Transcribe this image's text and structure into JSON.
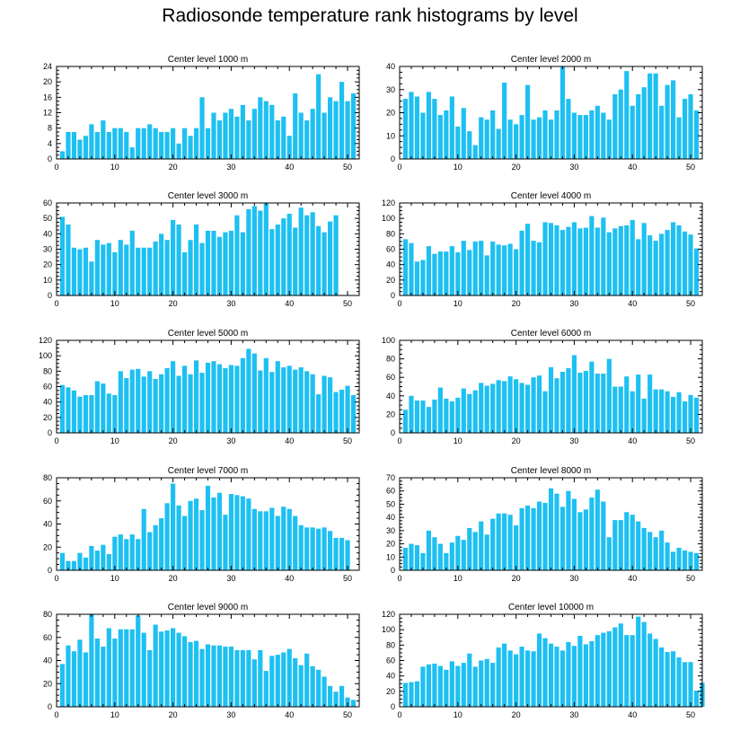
{
  "title": "Radiosonde temperature rank histograms by level",
  "colors": {
    "bar": "#1ec0f2",
    "axis": "#000000",
    "background": "#ffffff"
  },
  "chart_data": [
    {
      "type": "bar",
      "title": "Center level 1000 m",
      "xlim": [
        0,
        52
      ],
      "ylim": [
        0,
        24
      ],
      "xticks": [
        0,
        10,
        20,
        30,
        40,
        50
      ],
      "yticks": [
        0,
        4,
        8,
        12,
        16,
        20,
        24
      ],
      "values": [
        2,
        7,
        7,
        5,
        6,
        9,
        7,
        10,
        7,
        8,
        8,
        7,
        3,
        8,
        8,
        9,
        8,
        7,
        7,
        8,
        4,
        8,
        6,
        8,
        16,
        8,
        12,
        10,
        12,
        13,
        11,
        14,
        10,
        13,
        16,
        15,
        14,
        10,
        11,
        6,
        17,
        12,
        10,
        13,
        22,
        12,
        16,
        15,
        20,
        15,
        17
      ]
    },
    {
      "type": "bar",
      "title": "Center level 2000 m",
      "xlim": [
        0,
        52
      ],
      "ylim": [
        0,
        40
      ],
      "xticks": [
        0,
        10,
        20,
        30,
        40,
        50
      ],
      "yticks": [
        0,
        10,
        20,
        30,
        40
      ],
      "values": [
        26,
        29,
        27,
        20,
        29,
        26,
        19,
        21,
        27,
        14,
        22,
        12,
        6,
        18,
        17,
        21,
        13,
        33,
        17,
        15,
        19,
        32,
        17,
        18,
        21,
        17,
        21,
        40,
        26,
        20,
        19,
        19,
        21,
        23,
        20,
        17,
        28,
        30,
        38,
        23,
        28,
        31,
        37,
        37,
        23,
        32,
        34,
        18,
        26,
        28,
        21
      ]
    },
    {
      "type": "bar",
      "title": "Center level 3000 m",
      "xlim": [
        0,
        52
      ],
      "ylim": [
        0,
        60
      ],
      "xticks": [
        0,
        10,
        20,
        30,
        40,
        50
      ],
      "yticks": [
        0,
        10,
        20,
        30,
        40,
        50,
        60
      ],
      "values": [
        51,
        46,
        31,
        30,
        31,
        22,
        36,
        33,
        34,
        28,
        36,
        33,
        42,
        31,
        31,
        31,
        35,
        40,
        36,
        49,
        46,
        28,
        36,
        46,
        34,
        42,
        42,
        38,
        41,
        42,
        52,
        41,
        56,
        58,
        55,
        60,
        43,
        46,
        50,
        53,
        44,
        57,
        52,
        54,
        45,
        41,
        48,
        52
      ]
    },
    {
      "type": "bar",
      "title": "Center level 4000 m",
      "xlim": [
        0,
        52
      ],
      "ylim": [
        0,
        120
      ],
      "xticks": [
        0,
        10,
        20,
        30,
        40,
        50
      ],
      "yticks": [
        0,
        20,
        40,
        60,
        80,
        100,
        120
      ],
      "values": [
        73,
        68,
        44,
        46,
        64,
        54,
        57,
        57,
        64,
        56,
        71,
        59,
        70,
        71,
        52,
        70,
        66,
        65,
        67,
        60,
        84,
        93,
        71,
        69,
        95,
        94,
        91,
        85,
        89,
        95,
        87,
        88,
        103,
        88,
        101,
        82,
        87,
        90,
        91,
        98,
        73,
        94,
        78,
        71,
        80,
        85,
        95,
        91,
        83,
        79,
        61
      ]
    },
    {
      "type": "bar",
      "title": "Center level 5000 m",
      "xlim": [
        0,
        52
      ],
      "ylim": [
        0,
        120
      ],
      "xticks": [
        0,
        10,
        20,
        30,
        40,
        50
      ],
      "yticks": [
        0,
        20,
        40,
        60,
        80,
        100,
        120
      ],
      "values": [
        62,
        59,
        55,
        47,
        49,
        49,
        67,
        64,
        51,
        49,
        80,
        71,
        82,
        83,
        73,
        80,
        70,
        76,
        84,
        93,
        74,
        87,
        76,
        94,
        78,
        91,
        93,
        89,
        84,
        88,
        87,
        97,
        109,
        103,
        81,
        97,
        79,
        93,
        85,
        87,
        82,
        85,
        80,
        76,
        50,
        74,
        72,
        53,
        56,
        61,
        49
      ]
    },
    {
      "type": "bar",
      "title": "Center level 6000 m",
      "xlim": [
        0,
        52
      ],
      "ylim": [
        0,
        100
      ],
      "xticks": [
        0,
        10,
        20,
        30,
        40,
        50
      ],
      "yticks": [
        0,
        20,
        40,
        60,
        80,
        100
      ],
      "values": [
        25,
        40,
        35,
        35,
        28,
        36,
        49,
        37,
        34,
        38,
        48,
        42,
        46,
        54,
        51,
        53,
        57,
        56,
        61,
        58,
        54,
        52,
        60,
        62,
        45,
        71,
        59,
        66,
        70,
        84,
        65,
        67,
        77,
        64,
        64,
        80,
        50,
        50,
        61,
        45,
        63,
        37,
        63,
        47,
        47,
        45,
        39,
        44,
        34,
        41,
        38
      ]
    },
    {
      "type": "bar",
      "title": "Center level 7000 m",
      "xlim": [
        0,
        52
      ],
      "ylim": [
        0,
        80
      ],
      "xticks": [
        0,
        10,
        20,
        30,
        40,
        50
      ],
      "yticks": [
        0,
        20,
        40,
        60,
        80
      ],
      "values": [
        15,
        8,
        8,
        15,
        11,
        21,
        17,
        22,
        14,
        29,
        31,
        27,
        31,
        27,
        53,
        33,
        39,
        45,
        58,
        75,
        56,
        47,
        60,
        62,
        52,
        73,
        63,
        67,
        48,
        66,
        65,
        64,
        62,
        53,
        51,
        51,
        54,
        47,
        55,
        53,
        47,
        39,
        37,
        37,
        36,
        37,
        34,
        28,
        28,
        26
      ]
    },
    {
      "type": "bar",
      "title": "Center level 8000 m",
      "xlim": [
        0,
        52
      ],
      "ylim": [
        0,
        70
      ],
      "xticks": [
        0,
        10,
        20,
        30,
        40,
        50
      ],
      "yticks": [
        0,
        10,
        20,
        30,
        40,
        50,
        60,
        70
      ],
      "values": [
        17,
        20,
        19,
        13,
        30,
        25,
        20,
        13,
        21,
        26,
        23,
        32,
        29,
        37,
        27,
        39,
        43,
        43,
        42,
        34,
        47,
        49,
        47,
        52,
        51,
        62,
        58,
        48,
        60,
        54,
        44,
        46,
        55,
        61,
        52,
        25,
        38,
        38,
        44,
        42,
        37,
        32,
        29,
        25,
        30,
        21,
        14,
        17,
        15,
        14,
        13
      ]
    },
    {
      "type": "bar",
      "title": "Center level 9000 m",
      "xlim": [
        0,
        52
      ],
      "ylim": [
        0,
        80
      ],
      "xticks": [
        0,
        10,
        20,
        30,
        40,
        50
      ],
      "yticks": [
        0,
        20,
        40,
        60,
        80
      ],
      "values": [
        37,
        53,
        48,
        58,
        47,
        80,
        59,
        52,
        68,
        59,
        67,
        67,
        67,
        79,
        64,
        49,
        71,
        65,
        66,
        68,
        64,
        61,
        56,
        57,
        50,
        54,
        53,
        53,
        52,
        52,
        49,
        49,
        49,
        41,
        49,
        31,
        44,
        45,
        47,
        50,
        42,
        36,
        46,
        35,
        32,
        26,
        18,
        13,
        18,
        8,
        6
      ]
    },
    {
      "type": "bar",
      "title": "Center level 10000 m",
      "xlim": [
        0,
        52
      ],
      "ylim": [
        0,
        120
      ],
      "xticks": [
        0,
        10,
        20,
        30,
        40,
        50
      ],
      "yticks": [
        0,
        20,
        40,
        60,
        80,
        100,
        120
      ],
      "values": [
        31,
        32,
        33,
        52,
        55,
        56,
        53,
        48,
        59,
        53,
        57,
        69,
        52,
        60,
        62,
        57,
        77,
        82,
        73,
        68,
        78,
        73,
        72,
        95,
        89,
        82,
        78,
        73,
        84,
        79,
        92,
        81,
        85,
        93,
        96,
        98,
        103,
        108,
        93,
        93,
        117,
        110,
        95,
        88,
        77,
        71,
        72,
        64,
        58,
        58,
        21,
        31
      ]
    }
  ]
}
